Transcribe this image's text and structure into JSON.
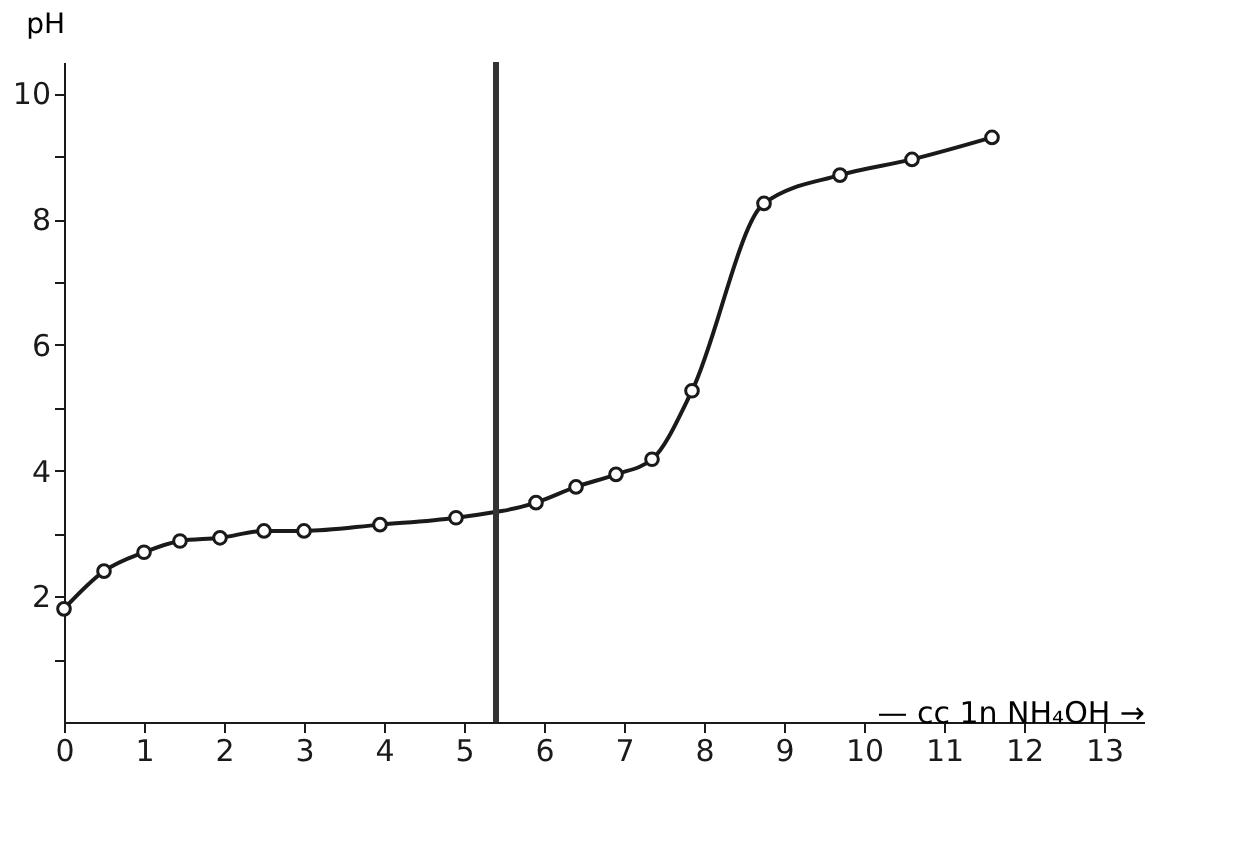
{
  "chart_data": {
    "type": "line",
    "xlabel": "— cc 1n NH₄OH →",
    "ylabel": "pH",
    "x": [
      0,
      0.5,
      1.0,
      1.45,
      1.95,
      2.5,
      3.0,
      3.95,
      4.9,
      5.9,
      6.4,
      6.9,
      7.35,
      7.85,
      8.75,
      9.7,
      10.6,
      11.6
    ],
    "series": [
      {
        "color": "#1a1a1a",
        "values": [
          1.8,
          2.4,
          2.7,
          2.88,
          2.93,
          3.04,
          3.04,
          3.14,
          3.25,
          3.49,
          3.74,
          3.94,
          4.18,
          5.27,
          8.25,
          8.7,
          8.95,
          9.3
        ]
      }
    ],
    "xlim": [
      0,
      13.5
    ],
    "xticks": [
      0,
      1,
      2,
      3,
      4,
      5,
      6,
      7,
      8,
      9,
      10,
      11,
      12,
      13
    ],
    "ylim": [
      0,
      10.5
    ],
    "yticks": [
      {
        "value": 1,
        "label": null
      },
      2,
      {
        "value": 3,
        "label": null
      },
      4,
      {
        "value": 5,
        "label": null
      },
      6,
      {
        "value": 7,
        "label": null
      },
      8,
      {
        "value": 9,
        "label": null
      },
      10
    ],
    "ref_lines": [
      {
        "axis": "x",
        "value": 5.4,
        "color": "#333333",
        "line_style": "solid"
      }
    ],
    "grid": false,
    "marker": "circle",
    "line_style": "solid"
  }
}
